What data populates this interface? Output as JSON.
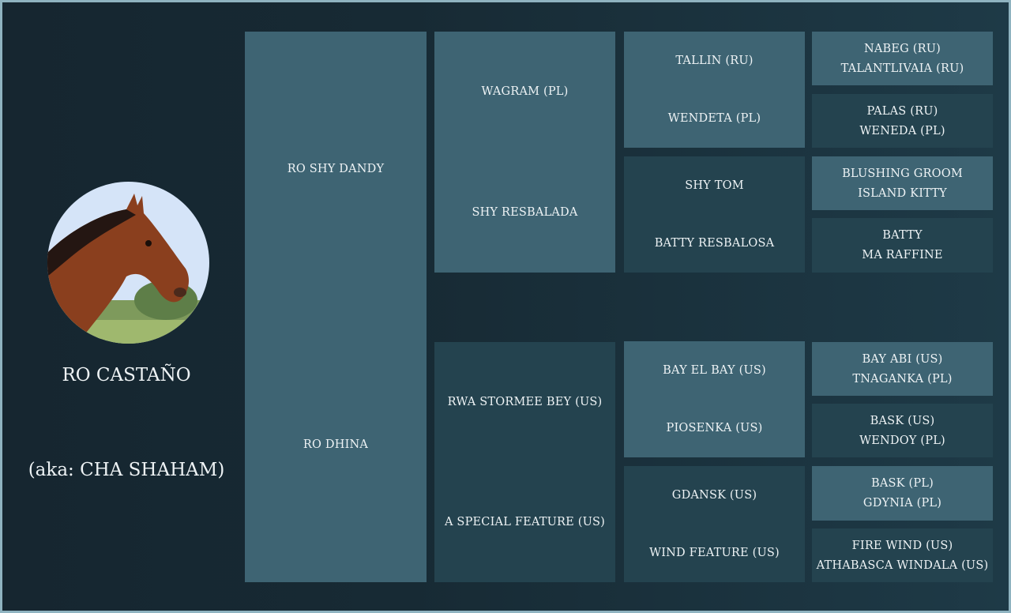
{
  "horse": {
    "name": "RO CASTAÑO",
    "aka": "(aka:  CHA SHAHAM)",
    "photo_icon": "horse-head-photo"
  },
  "sire": "RO SHY DANDY",
  "dam": "RO DHINA",
  "gen2": [
    "WAGRAM (PL)",
    "SHY RESBALADA",
    "RWA STORMEE BEY (US)",
    "A SPECIAL FEATURE (US)"
  ],
  "gen3": [
    [
      "TALLIN (RU)",
      "WENDETA (PL)"
    ],
    [
      "SHY TOM",
      "BATTY RESBALOSA"
    ],
    [
      "BAY EL BAY (US)",
      "PIOSENKA (US)"
    ],
    [
      "GDANSK (US)",
      "WIND FEATURE (US)"
    ]
  ],
  "gen4": [
    [
      "NABEG (RU)",
      "TALANTLIVAIA (RU)"
    ],
    [
      "PALAS (RU)",
      "WENEDA (PL)"
    ],
    [
      "BLUSHING GROOM",
      "ISLAND KITTY"
    ],
    [
      "BATTY",
      "MA RAFFINE"
    ],
    [
      "BAY ABI (US)",
      "TNAGANKA (PL)"
    ],
    [
      "BASK (US)",
      "WENDOY (PL)"
    ],
    [
      "BASK (PL)",
      "GDYNIA (PL)"
    ],
    [
      "FIRE WIND (US)",
      "ATHABASCA WINDALA (US)"
    ]
  ],
  "colors": {
    "background": "#172a34",
    "light_box": "#3e6473",
    "dark_box": "#24434f",
    "frame": "#8fb3c0"
  }
}
